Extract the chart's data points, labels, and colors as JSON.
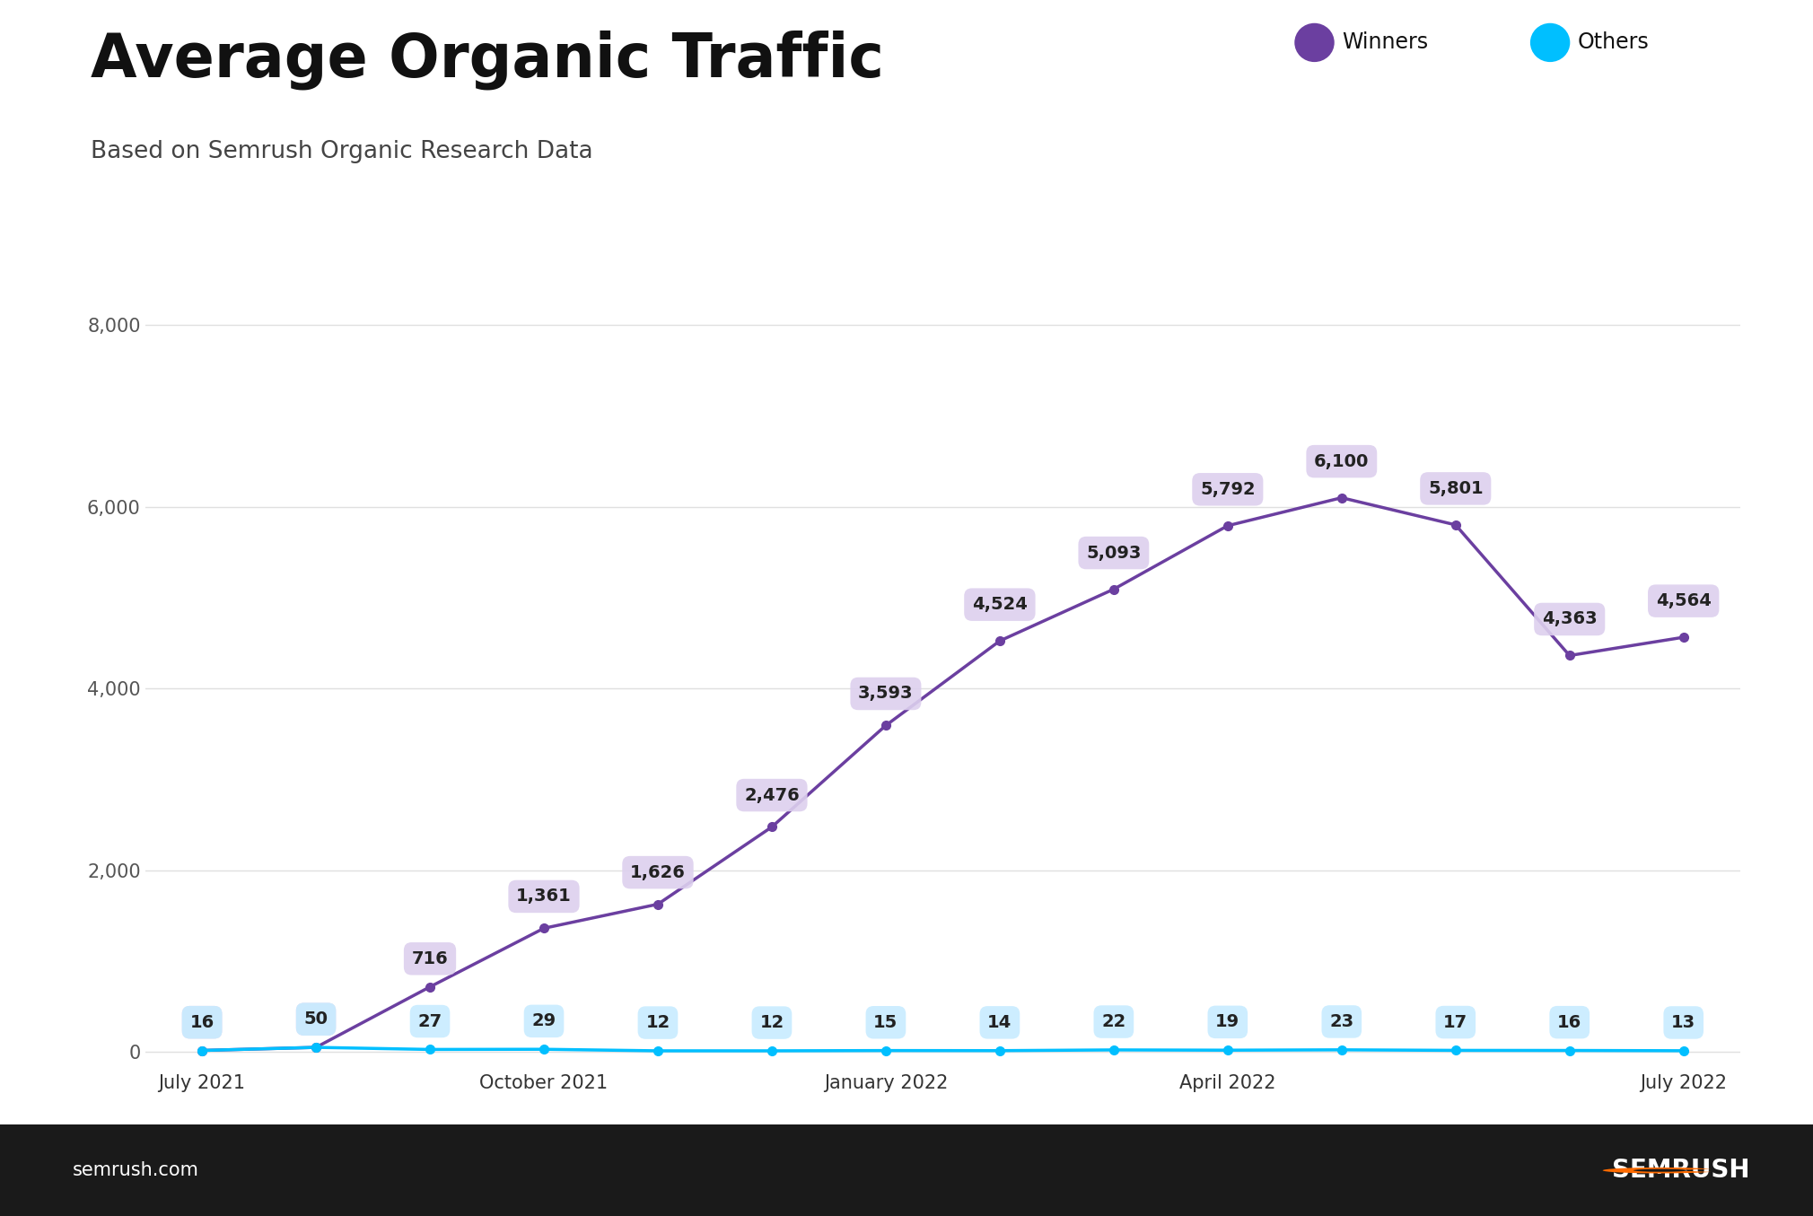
{
  "title": "Average Organic Traffic",
  "subtitle": "Based on Semrush Organic Research Data",
  "x_positions": [
    0,
    1,
    2,
    3,
    4,
    5,
    6,
    7,
    8,
    9,
    10,
    11,
    12,
    13
  ],
  "winners_values": [
    16,
    50,
    716,
    1361,
    1626,
    2476,
    3593,
    4524,
    5093,
    5792,
    6100,
    5801,
    4363,
    4564
  ],
  "others_values": [
    16,
    50,
    27,
    29,
    12,
    12,
    15,
    14,
    22,
    19,
    23,
    17,
    16,
    13
  ],
  "winners_labels": [
    "16",
    "50",
    "716",
    "1,361",
    "1,626",
    "2,476",
    "3,593",
    "4,524",
    "5,093",
    "5,792",
    "6,100",
    "5,801",
    "4,363",
    "4,564"
  ],
  "others_labels": [
    "16",
    "50",
    "27",
    "29",
    "12",
    "12",
    "15",
    "14",
    "22",
    "19",
    "23",
    "17",
    "16",
    "13"
  ],
  "winners_color": "#6B3FA0",
  "winners_fill_color": "#DDD0EE",
  "others_color": "#00BFFF",
  "others_fill_color": "#C8ECFF",
  "title_fontsize": 48,
  "subtitle_fontsize": 19,
  "background_color": "#ffffff",
  "footer_bg": "#1a1a1a",
  "footer_text_left": "semrush.com",
  "footer_text_right": "SEMRUSH",
  "ylim": [
    -200,
    8500
  ],
  "yticks": [
    0,
    2000,
    4000,
    6000,
    8000
  ],
  "x_tick_positions": [
    0,
    3,
    6,
    9,
    13
  ],
  "x_tick_labels": [
    "July 2021",
    "October 2021",
    "January 2022",
    "April 2022",
    "July 2022"
  ],
  "grid_color": "#e0e0e0"
}
